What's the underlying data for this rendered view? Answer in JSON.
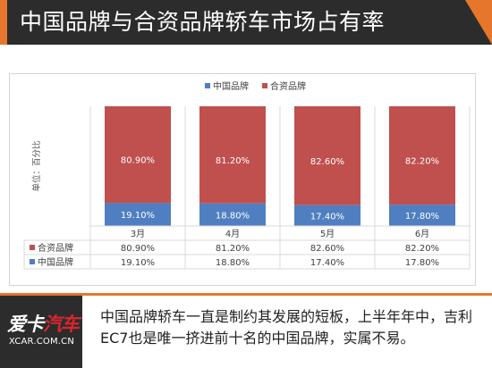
{
  "header": {
    "title": "中国品牌与合资品牌轿车市场占有率",
    "accent_color": "#e6762b",
    "background_color": "#2c2c2c"
  },
  "chart_data": {
    "type": "bar",
    "stacked": true,
    "categories": [
      "3月",
      "4月",
      "5月",
      "6月"
    ],
    "series": [
      {
        "name": "中国品牌",
        "values": [
          19.1,
          18.8,
          17.4,
          17.8
        ],
        "labels": [
          "19.10%",
          "18.80%",
          "17.40%",
          "17.80%"
        ],
        "color": "#4f7fc0"
      },
      {
        "name": "合资品牌",
        "values": [
          80.9,
          81.2,
          82.6,
          82.2
        ],
        "labels": [
          "80.90%",
          "81.20%",
          "82.60%",
          "82.20%"
        ],
        "color": "#c0504d"
      }
    ],
    "ylabel": "单位：百分比",
    "ylim": [
      0,
      100
    ],
    "legend": "top-center",
    "data_table": true,
    "grid": false
  },
  "caption": {
    "text": "中国品牌轿车一直是制约其发展的短板，上半年年中，吉利EC7也是唯一挤进前十名的中国品牌，实属不易。"
  },
  "logo": {
    "text_white": "爱卡",
    "text_red": "汽车",
    "subtext": "XCAR.COM.CN"
  }
}
